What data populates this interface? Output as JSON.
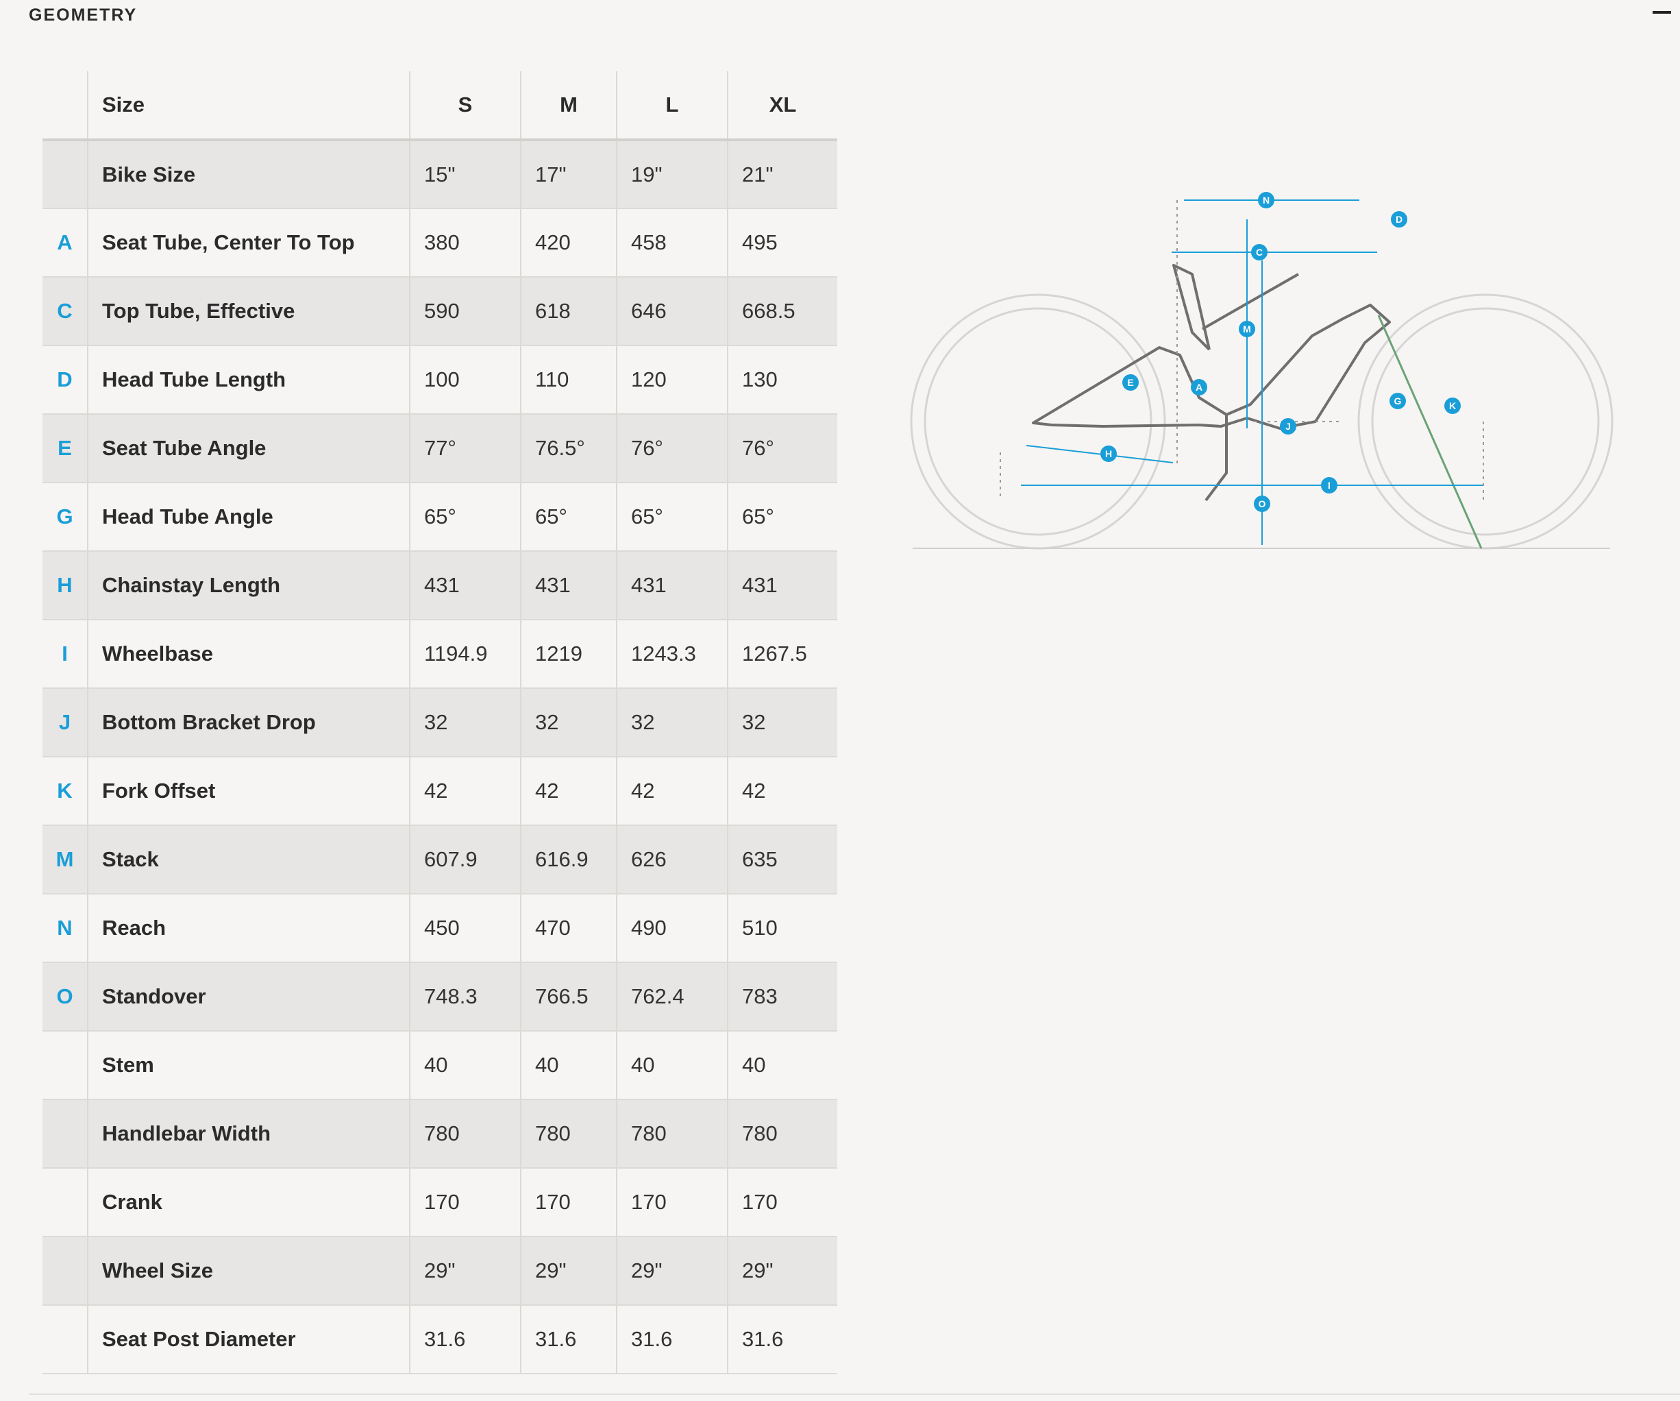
{
  "section": {
    "title": "GEOMETRY"
  },
  "table": {
    "header": {
      "label": "Size",
      "sizes": [
        "S",
        "M",
        "L",
        "XL"
      ]
    },
    "rows": [
      {
        "letter": "",
        "label": "Bike Size",
        "values": [
          "15\"",
          "17\"",
          "19\"",
          "21\""
        ]
      },
      {
        "letter": "A",
        "label": "Seat Tube, Center To Top",
        "values": [
          "380",
          "420",
          "458",
          "495"
        ]
      },
      {
        "letter": "C",
        "label": "Top Tube, Effective",
        "values": [
          "590",
          "618",
          "646",
          "668.5"
        ]
      },
      {
        "letter": "D",
        "label": "Head Tube Length",
        "values": [
          "100",
          "110",
          "120",
          "130"
        ]
      },
      {
        "letter": "E",
        "label": "Seat Tube Angle",
        "values": [
          "77°",
          "76.5°",
          "76°",
          "76°"
        ]
      },
      {
        "letter": "G",
        "label": "Head Tube Angle",
        "values": [
          "65°",
          "65°",
          "65°",
          "65°"
        ]
      },
      {
        "letter": "H",
        "label": "Chainstay Length",
        "values": [
          "431",
          "431",
          "431",
          "431"
        ]
      },
      {
        "letter": "I",
        "label": "Wheelbase",
        "values": [
          "1194.9",
          "1219",
          "1243.3",
          "1267.5"
        ]
      },
      {
        "letter": "J",
        "label": "Bottom Bracket Drop",
        "values": [
          "32",
          "32",
          "32",
          "32"
        ]
      },
      {
        "letter": "K",
        "label": "Fork Offset",
        "values": [
          "42",
          "42",
          "42",
          "42"
        ]
      },
      {
        "letter": "M",
        "label": "Stack",
        "values": [
          "607.9",
          "616.9",
          "626",
          "635"
        ]
      },
      {
        "letter": "N",
        "label": "Reach",
        "values": [
          "450",
          "470",
          "490",
          "510"
        ]
      },
      {
        "letter": "O",
        "label": "Standover",
        "values": [
          "748.3",
          "766.5",
          "762.4",
          "783"
        ]
      },
      {
        "letter": "",
        "label": "Stem",
        "values": [
          "40",
          "40",
          "40",
          "40"
        ]
      },
      {
        "letter": "",
        "label": "Handlebar Width",
        "values": [
          "780",
          "780",
          "780",
          "780"
        ]
      },
      {
        "letter": "",
        "label": "Crank",
        "values": [
          "170",
          "170",
          "170",
          "170"
        ]
      },
      {
        "letter": "",
        "label": "Wheel Size",
        "values": [
          "29\"",
          "29\"",
          "29\"",
          "29\""
        ]
      },
      {
        "letter": "",
        "label": "Seat Post Diameter",
        "values": [
          "31.6",
          "31.6",
          "31.6",
          "31.6"
        ]
      }
    ]
  },
  "diagram": {
    "markers": [
      "N",
      "D",
      "C",
      "M",
      "A",
      "E",
      "G",
      "K",
      "J",
      "H",
      "I",
      "O"
    ],
    "colors": {
      "accent": "#1a9ed8",
      "frame": "#6f6f6f",
      "wheel": "#d5d5d5",
      "fork": "#6aa377"
    }
  }
}
